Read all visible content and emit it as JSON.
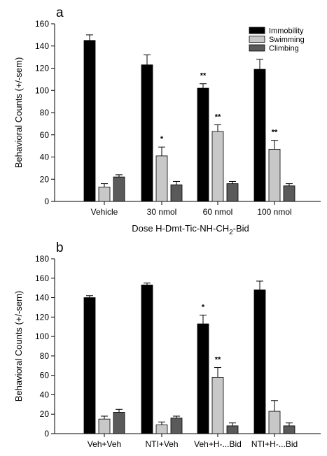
{
  "colors": {
    "immobility": "#000000",
    "swimming": "#c8c8c8",
    "climbing": "#5a5a5a",
    "axis": "#000000",
    "background": "#ffffff"
  },
  "chart_data": [
    {
      "type": "bar",
      "panel_label": "a",
      "ylabel": "Behavioral Counts (+/-sem)",
      "xlabel_parts": [
        "Dose H-Dmt-Tic-NH-CH",
        "2",
        "-Bid"
      ],
      "ylim": [
        0,
        160
      ],
      "yticks": [
        0,
        20,
        40,
        60,
        80,
        100,
        120,
        140,
        160
      ],
      "grid": false,
      "legend_position": "top-right",
      "categories": [
        "Vehicle",
        "30 nmol",
        "60 nmol",
        "100 nmol"
      ],
      "series": [
        {
          "name": "Immobility",
          "values": [
            145,
            123,
            102,
            119
          ],
          "errors": [
            5,
            9,
            4,
            9
          ]
        },
        {
          "name": "Swimming",
          "values": [
            13,
            41,
            63,
            47
          ],
          "errors": [
            3,
            8,
            6,
            8
          ]
        },
        {
          "name": "Climbing",
          "values": [
            22,
            15,
            16,
            14
          ],
          "errors": [
            2,
            3,
            2,
            2
          ]
        }
      ],
      "annotations": [
        {
          "series": 1,
          "category": 1,
          "text": "*"
        },
        {
          "series": 0,
          "category": 2,
          "text": "**"
        },
        {
          "series": 1,
          "category": 2,
          "text": "**"
        },
        {
          "series": 1,
          "category": 3,
          "text": "**"
        }
      ]
    },
    {
      "type": "bar",
      "panel_label": "b",
      "ylabel": "Behavioral Counts (+/-sem)",
      "xlabel_parts": [],
      "ylim": [
        0,
        180
      ],
      "yticks": [
        0,
        20,
        40,
        60,
        80,
        100,
        120,
        140,
        160,
        180
      ],
      "grid": false,
      "legend_position": "",
      "categories": [
        "Veh+Veh",
        "NTI+Veh",
        "Veh+H-...Bid",
        "NTI+H-...Bid"
      ],
      "series": [
        {
          "name": "Immobility",
          "values": [
            140,
            153,
            113,
            148
          ],
          "errors": [
            2,
            2,
            9,
            9
          ]
        },
        {
          "name": "Swimming",
          "values": [
            15,
            9,
            58,
            23
          ],
          "errors": [
            3,
            3,
            10,
            11
          ]
        },
        {
          "name": "Climbing",
          "values": [
            22,
            16,
            8,
            8
          ],
          "errors": [
            3,
            2,
            3,
            3
          ]
        }
      ],
      "annotations": [
        {
          "series": 0,
          "category": 2,
          "text": "*"
        },
        {
          "series": 1,
          "category": 2,
          "text": "**"
        }
      ]
    }
  ]
}
